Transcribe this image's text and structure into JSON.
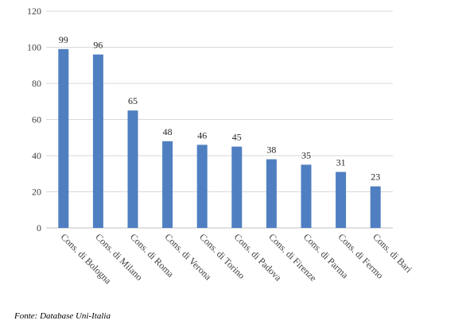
{
  "chart_data": {
    "type": "bar",
    "title": "",
    "xlabel": "",
    "ylabel": "",
    "categories": [
      "Cons. di Bologna",
      "Cons. di Milano",
      "Cons. di Roma",
      "Cons. di Verona",
      "Cons. di Torino",
      "Cons. di Padova",
      "Cons. di Firenze",
      "Cons. di Parma",
      "Cons. di Fermo",
      "Cons. di Bari"
    ],
    "values": [
      99,
      96,
      65,
      48,
      46,
      45,
      38,
      35,
      31,
      23
    ],
    "ylim": [
      0,
      120
    ],
    "yticks": [
      0,
      20,
      40,
      60,
      80,
      100,
      120
    ],
    "grid": true,
    "legend": "none",
    "bar_color": "#4f7fc1"
  },
  "source_note": "Fonte: Database Uni-Italia"
}
